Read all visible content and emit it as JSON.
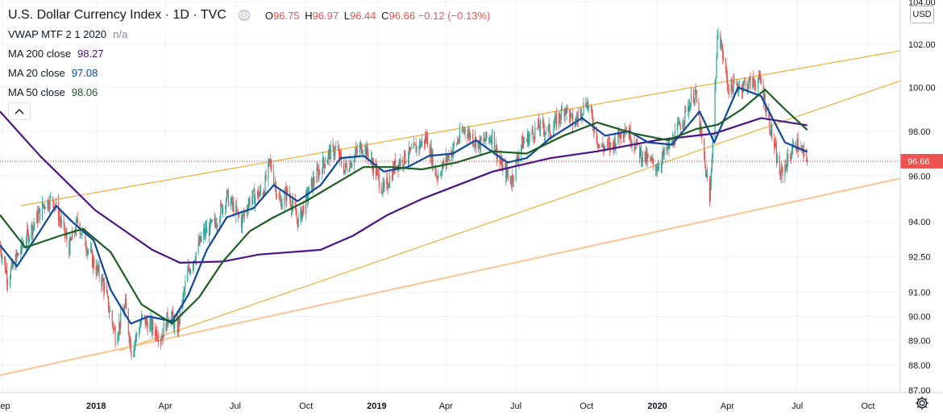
{
  "symbol": {
    "title": "U.S. Dollar Currency Index · 1D · TVC",
    "open_label": "O",
    "open": "96.75",
    "high_label": "H",
    "high": "96.97",
    "low_label": "L",
    "low": "96.44",
    "close_label": "C",
    "close": "96.66",
    "change": "−0.12 (−0.13%)"
  },
  "indicators": [
    {
      "label": "VWAP MTF 2 1 2020",
      "value": "n/a",
      "color": "#7e8bb3"
    },
    {
      "label": "MA 200 close",
      "value": "98.27",
      "color": "#4a1486"
    },
    {
      "label": "MA 20 close",
      "value": "97.08",
      "color": "#0d47a1"
    },
    {
      "label": "MA 50 close",
      "value": "98.06",
      "color": "#1b5e20"
    }
  ],
  "currency_button": "USD",
  "icons": {
    "visibility": "eye-icon",
    "collapse": "chevron-up-icon",
    "settings": "gear-icon"
  },
  "colors": {
    "up": "#26a69a",
    "down": "#ef5350",
    "ma200": "#4a1486",
    "ma20": "#0d47a1",
    "ma50": "#1b5e20",
    "trendline": "#f5a623",
    "trendline_light": "#f8c99a",
    "price_line": "#c62828"
  },
  "chart_data": {
    "type": "candlestick",
    "title": "U.S. Dollar Currency Index · 1D · TVC",
    "x_ticks": [
      "Sep",
      "2018",
      "Apr",
      "Jul",
      "Oct",
      "2019",
      "Apr",
      "Jul",
      "Oct",
      "2020",
      "Apr",
      "Jul",
      "Oct"
    ],
    "x_tick_dates": [
      "2017-09-01",
      "2018-01-01",
      "2018-04-01",
      "2018-07-01",
      "2018-10-01",
      "2019-01-01",
      "2019-04-01",
      "2019-07-01",
      "2019-10-01",
      "2020-01-01",
      "2020-04-01",
      "2020-07-01",
      "2020-10-01"
    ],
    "x_range": [
      "2017-08-29",
      "2020-11-12"
    ],
    "y_ticks": [
      "87.00",
      "88.00",
      "89.00",
      "90.00",
      "91.00",
      "92.50",
      "94.00",
      "96.00",
      "98.00",
      "100.00",
      "102.00",
      "104.00"
    ],
    "y_scale": "log",
    "ylim": [
      86.9,
      104.1
    ],
    "last_price": "96.66",
    "ohlc": {
      "open": 96.75,
      "high": 96.97,
      "low": 96.44,
      "close": 96.66,
      "change": -0.12,
      "change_pct": -0.13
    },
    "price_path": [
      [
        "2017-08-29",
        93.0
      ],
      [
        "2017-09-08",
        91.6
      ],
      [
        "2017-09-26",
        92.9
      ],
      [
        "2017-10-26",
        94.8
      ],
      [
        "2017-11-06",
        95.0
      ],
      [
        "2017-11-27",
        92.9
      ],
      [
        "2017-12-08",
        94.0
      ],
      [
        "2017-12-29",
        92.2
      ],
      [
        "2018-01-10",
        91.4
      ],
      [
        "2018-01-26",
        89.2
      ],
      [
        "2018-02-08",
        90.4
      ],
      [
        "2018-02-16",
        88.6
      ],
      [
        "2018-03-02",
        89.9
      ],
      [
        "2018-03-13",
        89.6
      ],
      [
        "2018-03-27",
        89.2
      ],
      [
        "2018-04-06",
        90.1
      ],
      [
        "2018-04-17",
        89.5
      ],
      [
        "2018-04-30",
        91.8
      ],
      [
        "2018-05-21",
        93.5
      ],
      [
        "2018-06-04",
        93.9
      ],
      [
        "2018-06-20",
        95.1
      ],
      [
        "2018-07-09",
        94.0
      ],
      [
        "2018-07-20",
        95.0
      ],
      [
        "2018-08-06",
        95.3
      ],
      [
        "2018-08-15",
        96.6
      ],
      [
        "2018-08-28",
        94.8
      ],
      [
        "2018-09-07",
        95.3
      ],
      [
        "2018-09-21",
        94.0
      ],
      [
        "2018-10-09",
        95.7
      ],
      [
        "2018-10-31",
        97.0
      ],
      [
        "2018-11-09",
        97.2
      ],
      [
        "2018-11-20",
        96.3
      ],
      [
        "2018-12-14",
        97.4
      ],
      [
        "2018-12-31",
        96.2
      ],
      [
        "2019-01-10",
        95.3
      ],
      [
        "2019-01-25",
        96.5
      ],
      [
        "2019-02-14",
        97.0
      ],
      [
        "2019-03-07",
        97.7
      ],
      [
        "2019-03-20",
        96.0
      ],
      [
        "2019-04-10",
        97.2
      ],
      [
        "2019-04-25",
        98.1
      ],
      [
        "2019-05-14",
        97.4
      ],
      [
        "2019-05-31",
        97.8
      ],
      [
        "2019-06-10",
        96.6
      ],
      [
        "2019-06-25",
        95.8
      ],
      [
        "2019-07-08",
        97.4
      ],
      [
        "2019-07-31",
        98.2
      ],
      [
        "2019-08-15",
        98.0
      ],
      [
        "2019-09-03",
        99.1
      ],
      [
        "2019-09-14",
        98.3
      ],
      [
        "2019-10-01",
        99.4
      ],
      [
        "2019-10-18",
        97.3
      ],
      [
        "2019-11-01",
        97.3
      ],
      [
        "2019-11-20",
        98.2
      ],
      [
        "2019-12-12",
        96.9
      ],
      [
        "2019-12-31",
        96.4
      ],
      [
        "2020-01-20",
        97.5
      ],
      [
        "2020-02-19",
        99.8
      ],
      [
        "2020-03-09",
        94.9
      ],
      [
        "2020-03-20",
        102.8
      ],
      [
        "2020-04-02",
        100.0
      ],
      [
        "2020-04-20",
        100.1
      ],
      [
        "2020-05-14",
        100.3
      ],
      [
        "2020-06-09",
        96.0
      ],
      [
        "2020-06-29",
        97.5
      ],
      [
        "2020-07-14",
        96.66
      ]
    ],
    "series": [
      {
        "name": "MA 200 close",
        "color": "#4a1486",
        "points": [
          [
            "2017-08-29",
            98.9
          ],
          [
            "2017-10-20",
            96.9
          ],
          [
            "2017-12-31",
            94.5
          ],
          [
            "2018-03-15",
            92.8
          ],
          [
            "2018-04-20",
            92.25
          ],
          [
            "2018-06-15",
            92.3
          ],
          [
            "2018-08-01",
            92.6
          ],
          [
            "2018-10-20",
            92.8
          ],
          [
            "2018-12-01",
            93.4
          ],
          [
            "2019-01-15",
            94.3
          ],
          [
            "2019-03-01",
            95.0
          ],
          [
            "2019-06-01",
            96.2
          ],
          [
            "2019-08-15",
            96.8
          ],
          [
            "2019-10-15",
            97.1
          ],
          [
            "2019-12-31",
            97.6
          ],
          [
            "2020-03-15",
            97.9
          ],
          [
            "2020-05-15",
            98.6
          ],
          [
            "2020-07-14",
            98.27
          ]
        ]
      },
      {
        "name": "MA 20 close",
        "color": "#0d47a1",
        "points": [
          [
            "2017-08-29",
            93.0
          ],
          [
            "2017-09-20",
            92.1
          ],
          [
            "2017-10-20",
            93.6
          ],
          [
            "2017-11-10",
            94.7
          ],
          [
            "2017-12-01",
            94.0
          ],
          [
            "2017-12-29",
            93.2
          ],
          [
            "2018-01-20",
            91.1
          ],
          [
            "2018-02-15",
            89.7
          ],
          [
            "2018-03-10",
            90.0
          ],
          [
            "2018-04-10",
            89.8
          ],
          [
            "2018-05-01",
            90.9
          ],
          [
            "2018-05-25",
            92.8
          ],
          [
            "2018-06-20",
            94.2
          ],
          [
            "2018-07-25",
            94.6
          ],
          [
            "2018-08-20",
            95.6
          ],
          [
            "2018-09-20",
            94.9
          ],
          [
            "2018-10-20",
            95.6
          ],
          [
            "2018-11-15",
            96.8
          ],
          [
            "2018-12-15",
            96.9
          ],
          [
            "2019-01-10",
            96.2
          ],
          [
            "2019-02-10",
            96.4
          ],
          [
            "2019-03-10",
            96.9
          ],
          [
            "2019-04-10",
            97.0
          ],
          [
            "2019-05-10",
            97.6
          ],
          [
            "2019-06-20",
            96.6
          ],
          [
            "2019-07-15",
            96.8
          ],
          [
            "2019-08-15",
            97.7
          ],
          [
            "2019-09-25",
            98.6
          ],
          [
            "2019-10-25",
            97.8
          ],
          [
            "2019-11-25",
            98.0
          ],
          [
            "2019-12-20",
            97.5
          ],
          [
            "2020-01-20",
            97.4
          ],
          [
            "2020-02-25",
            98.9
          ],
          [
            "2020-03-15",
            97.5
          ],
          [
            "2020-04-15",
            100.0
          ],
          [
            "2020-05-15",
            99.6
          ],
          [
            "2020-06-15",
            97.5
          ],
          [
            "2020-07-14",
            97.08
          ]
        ]
      },
      {
        "name": "MA 50 close",
        "color": "#1b5e20",
        "points": [
          [
            "2017-08-29",
            94.3
          ],
          [
            "2017-10-01",
            92.9
          ],
          [
            "2017-11-15",
            93.4
          ],
          [
            "2017-12-15",
            93.7
          ],
          [
            "2018-01-20",
            92.7
          ],
          [
            "2018-03-01",
            90.5
          ],
          [
            "2018-04-10",
            89.7
          ],
          [
            "2018-05-15",
            90.8
          ],
          [
            "2018-06-15",
            92.3
          ],
          [
            "2018-07-20",
            93.6
          ],
          [
            "2018-08-20",
            94.2
          ],
          [
            "2018-10-01",
            94.9
          ],
          [
            "2018-11-15",
            95.8
          ],
          [
            "2018-12-15",
            96.4
          ],
          [
            "2019-01-20",
            96.4
          ],
          [
            "2019-03-01",
            96.3
          ],
          [
            "2019-04-15",
            96.6
          ],
          [
            "2019-06-01",
            97.1
          ],
          [
            "2019-07-15",
            97.0
          ],
          [
            "2019-09-01",
            97.8
          ],
          [
            "2019-10-15",
            98.4
          ],
          [
            "2019-12-01",
            97.9
          ],
          [
            "2020-01-15",
            97.6
          ],
          [
            "2020-02-20",
            98.1
          ],
          [
            "2020-03-20",
            98.3
          ],
          [
            "2020-04-20",
            99.0
          ],
          [
            "2020-05-20",
            99.9
          ],
          [
            "2020-06-15",
            99.0
          ],
          [
            "2020-07-14",
            98.06
          ]
        ]
      }
    ],
    "trendlines": [
      {
        "color": "#f5a623",
        "from": [
          "2017-09-25",
          94.7
        ],
        "to": [
          "2020-11-12",
          101.7
        ]
      },
      {
        "color": "#f5a623",
        "from": [
          "2018-02-01",
          88.6
        ],
        "to": [
          "2020-11-12",
          100.3
        ]
      },
      {
        "color": "#f8c99a",
        "from": [
          "2017-08-29",
          87.6
        ],
        "to": [
          "2020-11-12",
          95.9
        ]
      }
    ],
    "grid": true,
    "legend": "top-left"
  }
}
